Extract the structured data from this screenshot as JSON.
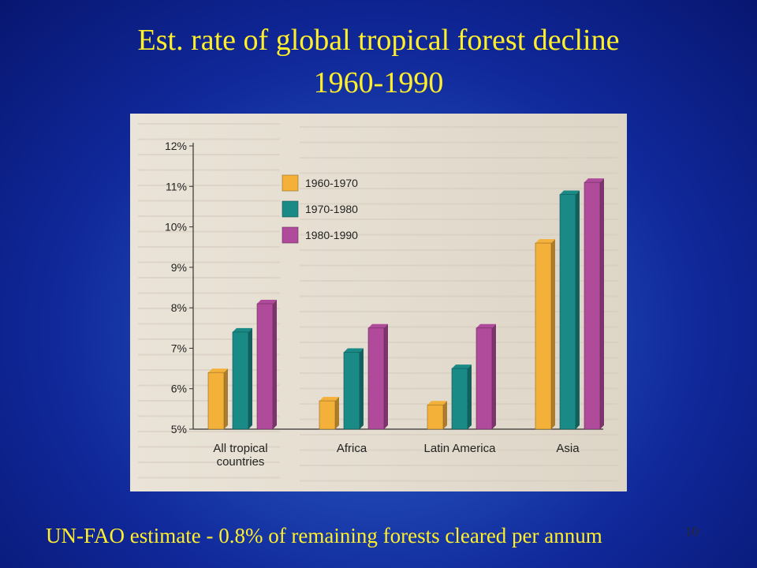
{
  "slide": {
    "title_line1": "Est. rate of global tropical forest decline",
    "title_line2": "1960-1990",
    "caption": "UN-FAO estimate  - 0.8% of remaining forests cleared per annum",
    "slide_number": "10"
  },
  "colors": {
    "background": "#1f47b3",
    "title_text": "#ffee2a",
    "series_1960_1970": "#f4b13a",
    "series_1970_1980": "#1a8a87",
    "series_1980_1990": "#b04a9a"
  },
  "chart_data": {
    "type": "bar",
    "title": "",
    "xlabel": "",
    "ylabel": "",
    "categories": [
      [
        "All tropical",
        "countries"
      ],
      [
        "Africa"
      ],
      [
        "Latin America"
      ],
      [
        "Asia"
      ]
    ],
    "series": [
      {
        "name": "1960-1970",
        "color": "#f4b13a",
        "values": [
          6.4,
          5.7,
          5.6,
          9.6
        ]
      },
      {
        "name": "1970-1980",
        "color": "#1a8a87",
        "values": [
          7.4,
          6.9,
          6.5,
          10.8
        ]
      },
      {
        "name": "1980-1990",
        "color": "#b04a9a",
        "values": [
          8.1,
          7.5,
          7.5,
          11.1
        ]
      }
    ],
    "ylim": [
      5,
      12
    ],
    "yticks": [
      "5%",
      "6%",
      "7%",
      "8%",
      "9%",
      "10%",
      "11%",
      "12%"
    ],
    "grid": false,
    "legend_position": "top-left"
  }
}
